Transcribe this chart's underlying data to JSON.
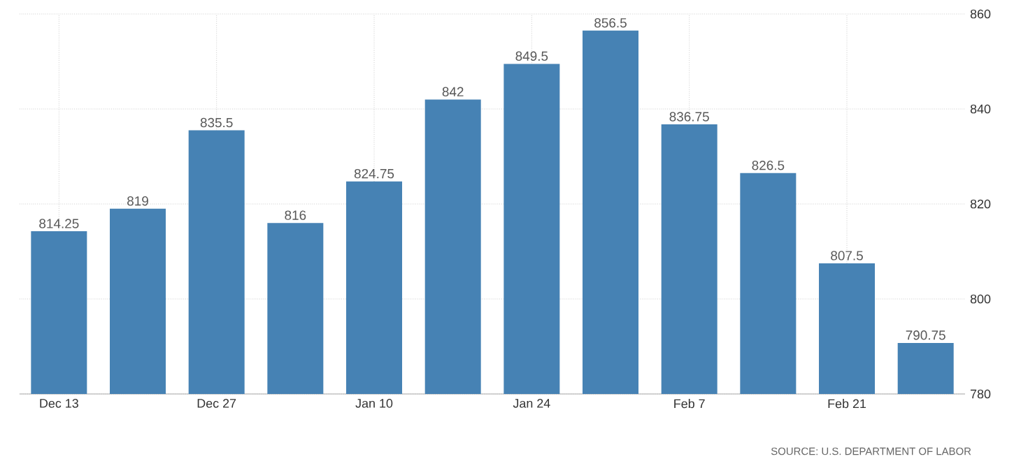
{
  "chart_data": {
    "type": "bar",
    "categories": [
      "Dec 13",
      null,
      "Dec 27",
      null,
      "Jan 10",
      null,
      "Jan 24",
      null,
      "Feb 7",
      null,
      "Feb 21",
      null
    ],
    "values": [
      814.25,
      819,
      835.5,
      816,
      824.75,
      842,
      849.5,
      856.5,
      836.75,
      826.5,
      807.5,
      790.75
    ],
    "color": "#4682b4",
    "ylim": [
      780,
      860
    ],
    "yticks": [
      780,
      800,
      820,
      840,
      860
    ],
    "grid": true,
    "data_labels": true,
    "annotations": [
      "SOURCE: U.S. DEPARTMENT OF LABOR"
    ]
  }
}
